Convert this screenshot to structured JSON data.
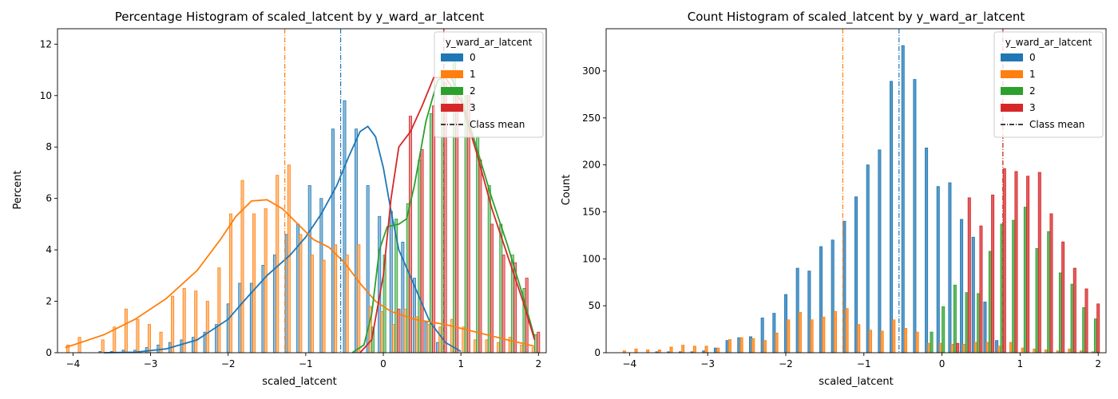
{
  "chart_data": [
    {
      "type": "bar",
      "title": "Percentage Histogram of scaled_latcent by y_ward_ar_latcent",
      "xlabel": "scaled_latcent",
      "ylabel": "Percent",
      "xlim": [
        -4.2,
        2.1
      ],
      "ylim": [
        0,
        12.6
      ],
      "xticks": [
        "-4",
        "-3",
        "-2",
        "-1",
        "0",
        "1",
        "2"
      ],
      "yticks": [
        "0",
        "2",
        "4",
        "6",
        "8",
        "10",
        "12"
      ],
      "grid": false,
      "legend_title": "y_ward_ar_latcent",
      "legend_placement": "top-right",
      "legend_entries": [
        "0",
        "1",
        "2",
        "3",
        "Class mean"
      ],
      "series": [
        {
          "name": "0",
          "color": "#1f77b4",
          "mean": -0.55,
          "x": [
            -3.6,
            -3.45,
            -3.3,
            -3.15,
            -3.0,
            -2.85,
            -2.7,
            -2.55,
            -2.4,
            -2.25,
            -2.1,
            -1.95,
            -1.8,
            -1.65,
            -1.5,
            -1.35,
            -1.2,
            -1.05,
            -0.9,
            -0.75,
            -0.6,
            -0.45,
            -0.3,
            -0.15,
            0.0,
            0.15,
            0.3,
            0.45,
            0.6,
            0.75
          ],
          "values": [
            0.05,
            0.05,
            0.1,
            0.1,
            0.2,
            0.3,
            0.4,
            0.5,
            0.6,
            0.8,
            1.1,
            1.9,
            2.7,
            2.7,
            3.4,
            3.8,
            4.6,
            5.0,
            6.5,
            6.0,
            8.7,
            9.8,
            8.7,
            6.5,
            5.3,
            5.5,
            4.3,
            2.9,
            1.2,
            0.4
          ],
          "kde": [
            [
              -3.6,
              0.0
            ],
            [
              -3.2,
              0.02
            ],
            [
              -2.8,
              0.15
            ],
            [
              -2.4,
              0.5
            ],
            [
              -2.0,
              1.3
            ],
            [
              -1.8,
              2.0
            ],
            [
              -1.5,
              3.0
            ],
            [
              -1.2,
              3.8
            ],
            [
              -1.0,
              4.5
            ],
            [
              -0.8,
              5.4
            ],
            [
              -0.6,
              6.5
            ],
            [
              -0.45,
              7.6
            ],
            [
              -0.3,
              8.6
            ],
            [
              -0.2,
              8.8
            ],
            [
              -0.1,
              8.4
            ],
            [
              0.0,
              7.2
            ],
            [
              0.1,
              5.5
            ],
            [
              0.2,
              4.0
            ],
            [
              0.4,
              2.6
            ],
            [
              0.6,
              1.2
            ],
            [
              0.8,
              0.4
            ],
            [
              1.0,
              0.05
            ]
          ]
        },
        {
          "name": "1",
          "color": "#ff7f0e",
          "mean": -1.27,
          "x": [
            -4.05,
            -3.9,
            -3.75,
            -3.6,
            -3.45,
            -3.3,
            -3.15,
            -3.0,
            -2.85,
            -2.7,
            -2.55,
            -2.4,
            -2.25,
            -2.1,
            -1.95,
            -1.8,
            -1.65,
            -1.5,
            -1.35,
            -1.2,
            -1.05,
            -0.9,
            -0.75,
            -0.6,
            -0.45,
            -0.3,
            -0.15,
            0.0,
            0.15,
            0.3,
            0.45,
            0.6,
            0.75,
            0.9,
            1.05,
            1.2,
            1.35,
            1.5,
            1.65,
            1.8,
            1.95
          ],
          "values": [
            0.3,
            0.6,
            0.0,
            0.5,
            1.0,
            1.7,
            1.3,
            1.1,
            0.8,
            2.2,
            2.5,
            2.4,
            2.0,
            3.3,
            5.4,
            6.7,
            5.4,
            5.6,
            6.9,
            7.3,
            4.6,
            3.8,
            3.6,
            4.2,
            3.8,
            4.2,
            1.8,
            1.6,
            1.1,
            1.7,
            1.4,
            1.1,
            1.0,
            1.3,
            1.0,
            0.5,
            0.5,
            0.4,
            0.6,
            0.3,
            0.2
          ],
          "kde": [
            [
              -4.1,
              0.2
            ],
            [
              -3.6,
              0.7
            ],
            [
              -3.2,
              1.3
            ],
            [
              -2.8,
              2.1
            ],
            [
              -2.4,
              3.2
            ],
            [
              -2.1,
              4.4
            ],
            [
              -1.9,
              5.3
            ],
            [
              -1.7,
              5.9
            ],
            [
              -1.5,
              5.95
            ],
            [
              -1.3,
              5.6
            ],
            [
              -1.1,
              5.0
            ],
            [
              -0.9,
              4.4
            ],
            [
              -0.7,
              4.1
            ],
            [
              -0.5,
              3.5
            ],
            [
              -0.3,
              2.7
            ],
            [
              -0.1,
              2.0
            ],
            [
              0.1,
              1.6
            ],
            [
              0.4,
              1.3
            ],
            [
              0.8,
              1.1
            ],
            [
              1.2,
              0.8
            ],
            [
              1.6,
              0.5
            ],
            [
              1.95,
              0.25
            ]
          ]
        },
        {
          "name": "2",
          "color": "#2ca02c",
          "mean": 0.78,
          "x": [
            -0.15,
            0.0,
            0.15,
            0.3,
            0.45,
            0.6,
            0.75,
            0.9,
            1.05,
            1.2,
            1.35,
            1.5,
            1.65,
            1.8,
            1.95
          ],
          "values": [
            1.0,
            3.8,
            5.2,
            5.8,
            7.5,
            9.3,
            10.8,
            11.5,
            10.0,
            8.4,
            6.5,
            5.0,
            3.8,
            2.5,
            0.7
          ],
          "kde": [
            [
              -0.4,
              0.0
            ],
            [
              -0.25,
              0.3
            ],
            [
              -0.15,
              1.5
            ],
            [
              -0.05,
              4.0
            ],
            [
              0.05,
              4.9
            ],
            [
              0.2,
              5.0
            ],
            [
              0.3,
              5.2
            ],
            [
              0.4,
              6.5
            ],
            [
              0.55,
              9.0
            ],
            [
              0.7,
              10.6
            ],
            [
              0.85,
              10.8
            ],
            [
              1.0,
              10.0
            ],
            [
              1.2,
              8.0
            ],
            [
              1.4,
              6.0
            ],
            [
              1.6,
              4.2
            ],
            [
              1.8,
              2.2
            ],
            [
              1.95,
              0.6
            ]
          ]
        },
        {
          "name": "3",
          "color": "#d62728",
          "mean": 0.78,
          "x": [
            0.15,
            0.3,
            0.45,
            0.6,
            0.75,
            0.9,
            1.05,
            1.2,
            1.35,
            1.5,
            1.65,
            1.8,
            1.95
          ],
          "values": [
            1.7,
            9.2,
            7.9,
            9.6,
            10.5,
            10.3,
            10.0,
            7.5,
            5.0,
            3.8,
            3.5,
            2.9,
            0.8
          ],
          "kde": [
            [
              -0.3,
              0.0
            ],
            [
              -0.15,
              0.5
            ],
            [
              0.0,
              3.0
            ],
            [
              0.1,
              6.0
            ],
            [
              0.2,
              8.0
            ],
            [
              0.35,
              8.6
            ],
            [
              0.5,
              9.6
            ],
            [
              0.65,
              10.7
            ],
            [
              0.8,
              10.7
            ],
            [
              1.0,
              9.8
            ],
            [
              1.2,
              7.8
            ],
            [
              1.4,
              5.6
            ],
            [
              1.6,
              3.8
            ],
            [
              1.8,
              2.0
            ],
            [
              1.95,
              0.5
            ]
          ]
        }
      ]
    },
    {
      "type": "bar",
      "title": "Count Histogram of scaled_latcent by y_ward_ar_latcent",
      "xlabel": "scaled_latcent",
      "ylabel": "Count",
      "xlim": [
        -4.3,
        2.1
      ],
      "ylim": [
        0,
        345
      ],
      "xticks": [
        "-4",
        "-3",
        "-2",
        "-1",
        "0",
        "1",
        "2"
      ],
      "yticks": [
        "0",
        "50",
        "100",
        "150",
        "200",
        "250",
        "300"
      ],
      "grid": false,
      "legend_title": "y_ward_ar_latcent",
      "legend_placement": "top-right",
      "legend_entries": [
        "0",
        "1",
        "2",
        "3",
        "Class mean"
      ],
      "series": [
        {
          "name": "0",
          "color": "#1f77b4",
          "mean": -0.55,
          "x": [
            -3.6,
            -3.45,
            -3.3,
            -3.15,
            -3.0,
            -2.85,
            -2.7,
            -2.55,
            -2.4,
            -2.25,
            -2.1,
            -1.95,
            -1.8,
            -1.65,
            -1.5,
            -1.35,
            -1.2,
            -1.05,
            -0.9,
            -0.75,
            -0.6,
            -0.45,
            -0.3,
            -0.15,
            0.0,
            0.15,
            0.3,
            0.45,
            0.6,
            0.75
          ],
          "values": [
            1,
            1,
            1,
            1,
            2,
            5,
            13,
            16,
            17,
            37,
            42,
            62,
            90,
            87,
            113,
            120,
            140,
            166,
            200,
            216,
            289,
            327,
            291,
            218,
            177,
            181,
            142,
            123,
            54,
            13
          ]
        },
        {
          "name": "1",
          "color": "#ff7f0e",
          "mean": -1.27,
          "x": [
            -4.05,
            -3.9,
            -3.75,
            -3.6,
            -3.45,
            -3.3,
            -3.15,
            -3.0,
            -2.85,
            -2.7,
            -2.55,
            -2.4,
            -2.25,
            -2.1,
            -1.95,
            -1.8,
            -1.65,
            -1.5,
            -1.35,
            -1.2,
            -1.05,
            -0.9,
            -0.75,
            -0.6,
            -0.45,
            -0.3,
            -0.15,
            0.0,
            0.15,
            0.3,
            0.45,
            0.6,
            0.75,
            0.9,
            1.05,
            1.2,
            1.35,
            1.5,
            1.65,
            1.8,
            1.95
          ],
          "values": [
            2,
            4,
            3,
            3,
            6,
            8,
            7,
            7,
            5,
            14,
            16,
            15,
            13,
            21,
            35,
            43,
            35,
            38,
            44,
            47,
            30,
            24,
            23,
            35,
            26,
            22,
            10,
            10,
            9,
            9,
            11,
            11,
            7,
            11,
            5,
            4,
            3,
            2,
            4,
            2,
            1
          ]
        },
        {
          "name": "2",
          "color": "#2ca02c",
          "mean": 0.78,
          "x": [
            -0.15,
            0.0,
            0.15,
            0.3,
            0.45,
            0.6,
            0.75,
            0.9,
            1.05,
            1.2,
            1.35,
            1.5,
            1.65,
            1.8,
            1.95
          ],
          "values": [
            22,
            49,
            72,
            64,
            63,
            108,
            137,
            141,
            155,
            111,
            129,
            85,
            73,
            48,
            36
          ]
        },
        {
          "name": "3",
          "color": "#d62728",
          "mean": 0.78,
          "x": [
            0.15,
            0.3,
            0.45,
            0.6,
            0.75,
            0.9,
            1.05,
            1.2,
            1.35,
            1.5,
            1.65,
            1.8,
            1.95
          ],
          "values": [
            10,
            165,
            135,
            168,
            196,
            193,
            188,
            192,
            148,
            118,
            90,
            68,
            52
          ]
        }
      ]
    }
  ]
}
